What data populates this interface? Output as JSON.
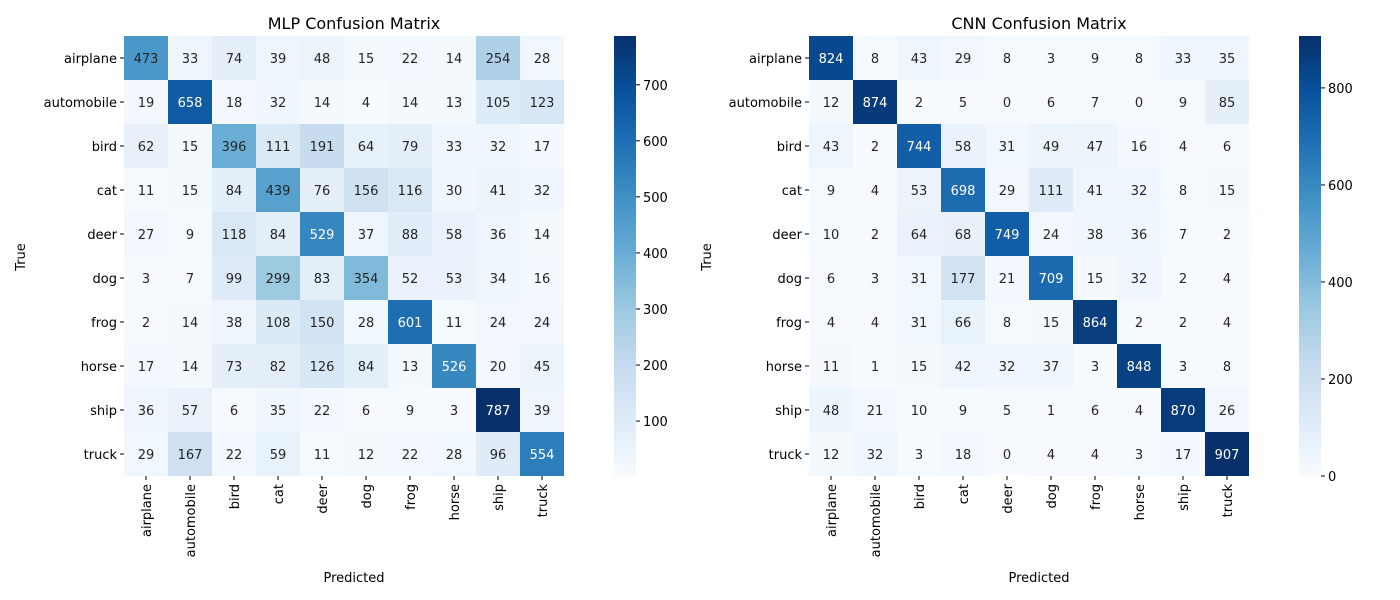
{
  "chart_data": [
    {
      "type": "heatmap",
      "title": "MLP Confusion Matrix",
      "xlabel": "Predicted",
      "ylabel": "True",
      "categories": [
        "airplane",
        "automobile",
        "bird",
        "cat",
        "deer",
        "dog",
        "frog",
        "horse",
        "ship",
        "truck"
      ],
      "matrix": [
        [
          473,
          33,
          74,
          39,
          48,
          15,
          22,
          14,
          254,
          28
        ],
        [
          19,
          658,
          18,
          32,
          14,
          4,
          14,
          13,
          105,
          123
        ],
        [
          62,
          15,
          396,
          111,
          191,
          64,
          79,
          33,
          32,
          17
        ],
        [
          11,
          15,
          84,
          439,
          76,
          156,
          116,
          30,
          41,
          32
        ],
        [
          27,
          9,
          118,
          84,
          529,
          37,
          88,
          58,
          36,
          14
        ],
        [
          3,
          7,
          99,
          299,
          83,
          354,
          52,
          53,
          34,
          16
        ],
        [
          2,
          14,
          38,
          108,
          150,
          28,
          601,
          11,
          24,
          24
        ],
        [
          17,
          14,
          73,
          82,
          126,
          84,
          13,
          526,
          20,
          45
        ],
        [
          36,
          57,
          6,
          35,
          22,
          6,
          9,
          3,
          787,
          39
        ],
        [
          29,
          167,
          22,
          59,
          11,
          12,
          22,
          28,
          96,
          554
        ]
      ],
      "colormap": "Blues",
      "colorbar": {
        "ticks": [
          100,
          200,
          300,
          400,
          500,
          600,
          700
        ],
        "range": [
          2,
          787
        ]
      }
    },
    {
      "type": "heatmap",
      "title": "CNN Confusion Matrix",
      "xlabel": "Predicted",
      "ylabel": "True",
      "categories": [
        "airplane",
        "automobile",
        "bird",
        "cat",
        "deer",
        "dog",
        "frog",
        "horse",
        "ship",
        "truck"
      ],
      "matrix": [
        [
          824,
          8,
          43,
          29,
          8,
          3,
          9,
          8,
          33,
          35
        ],
        [
          12,
          874,
          2,
          5,
          0,
          6,
          7,
          0,
          9,
          85
        ],
        [
          43,
          2,
          744,
          58,
          31,
          49,
          47,
          16,
          4,
          6
        ],
        [
          9,
          4,
          53,
          698,
          29,
          111,
          41,
          32,
          8,
          15
        ],
        [
          10,
          2,
          64,
          68,
          749,
          24,
          38,
          36,
          7,
          2
        ],
        [
          6,
          3,
          31,
          177,
          21,
          709,
          15,
          32,
          2,
          4
        ],
        [
          4,
          4,
          31,
          66,
          8,
          15,
          864,
          2,
          2,
          4
        ],
        [
          11,
          1,
          15,
          42,
          32,
          37,
          3,
          848,
          3,
          8
        ],
        [
          48,
          21,
          10,
          9,
          5,
          1,
          6,
          4,
          870,
          26
        ],
        [
          12,
          32,
          3,
          18,
          0,
          4,
          4,
          3,
          17,
          907
        ]
      ],
      "colormap": "Blues",
      "colorbar": {
        "ticks": [
          0,
          200,
          400,
          600,
          800
        ],
        "range": [
          0,
          907
        ]
      }
    }
  ]
}
